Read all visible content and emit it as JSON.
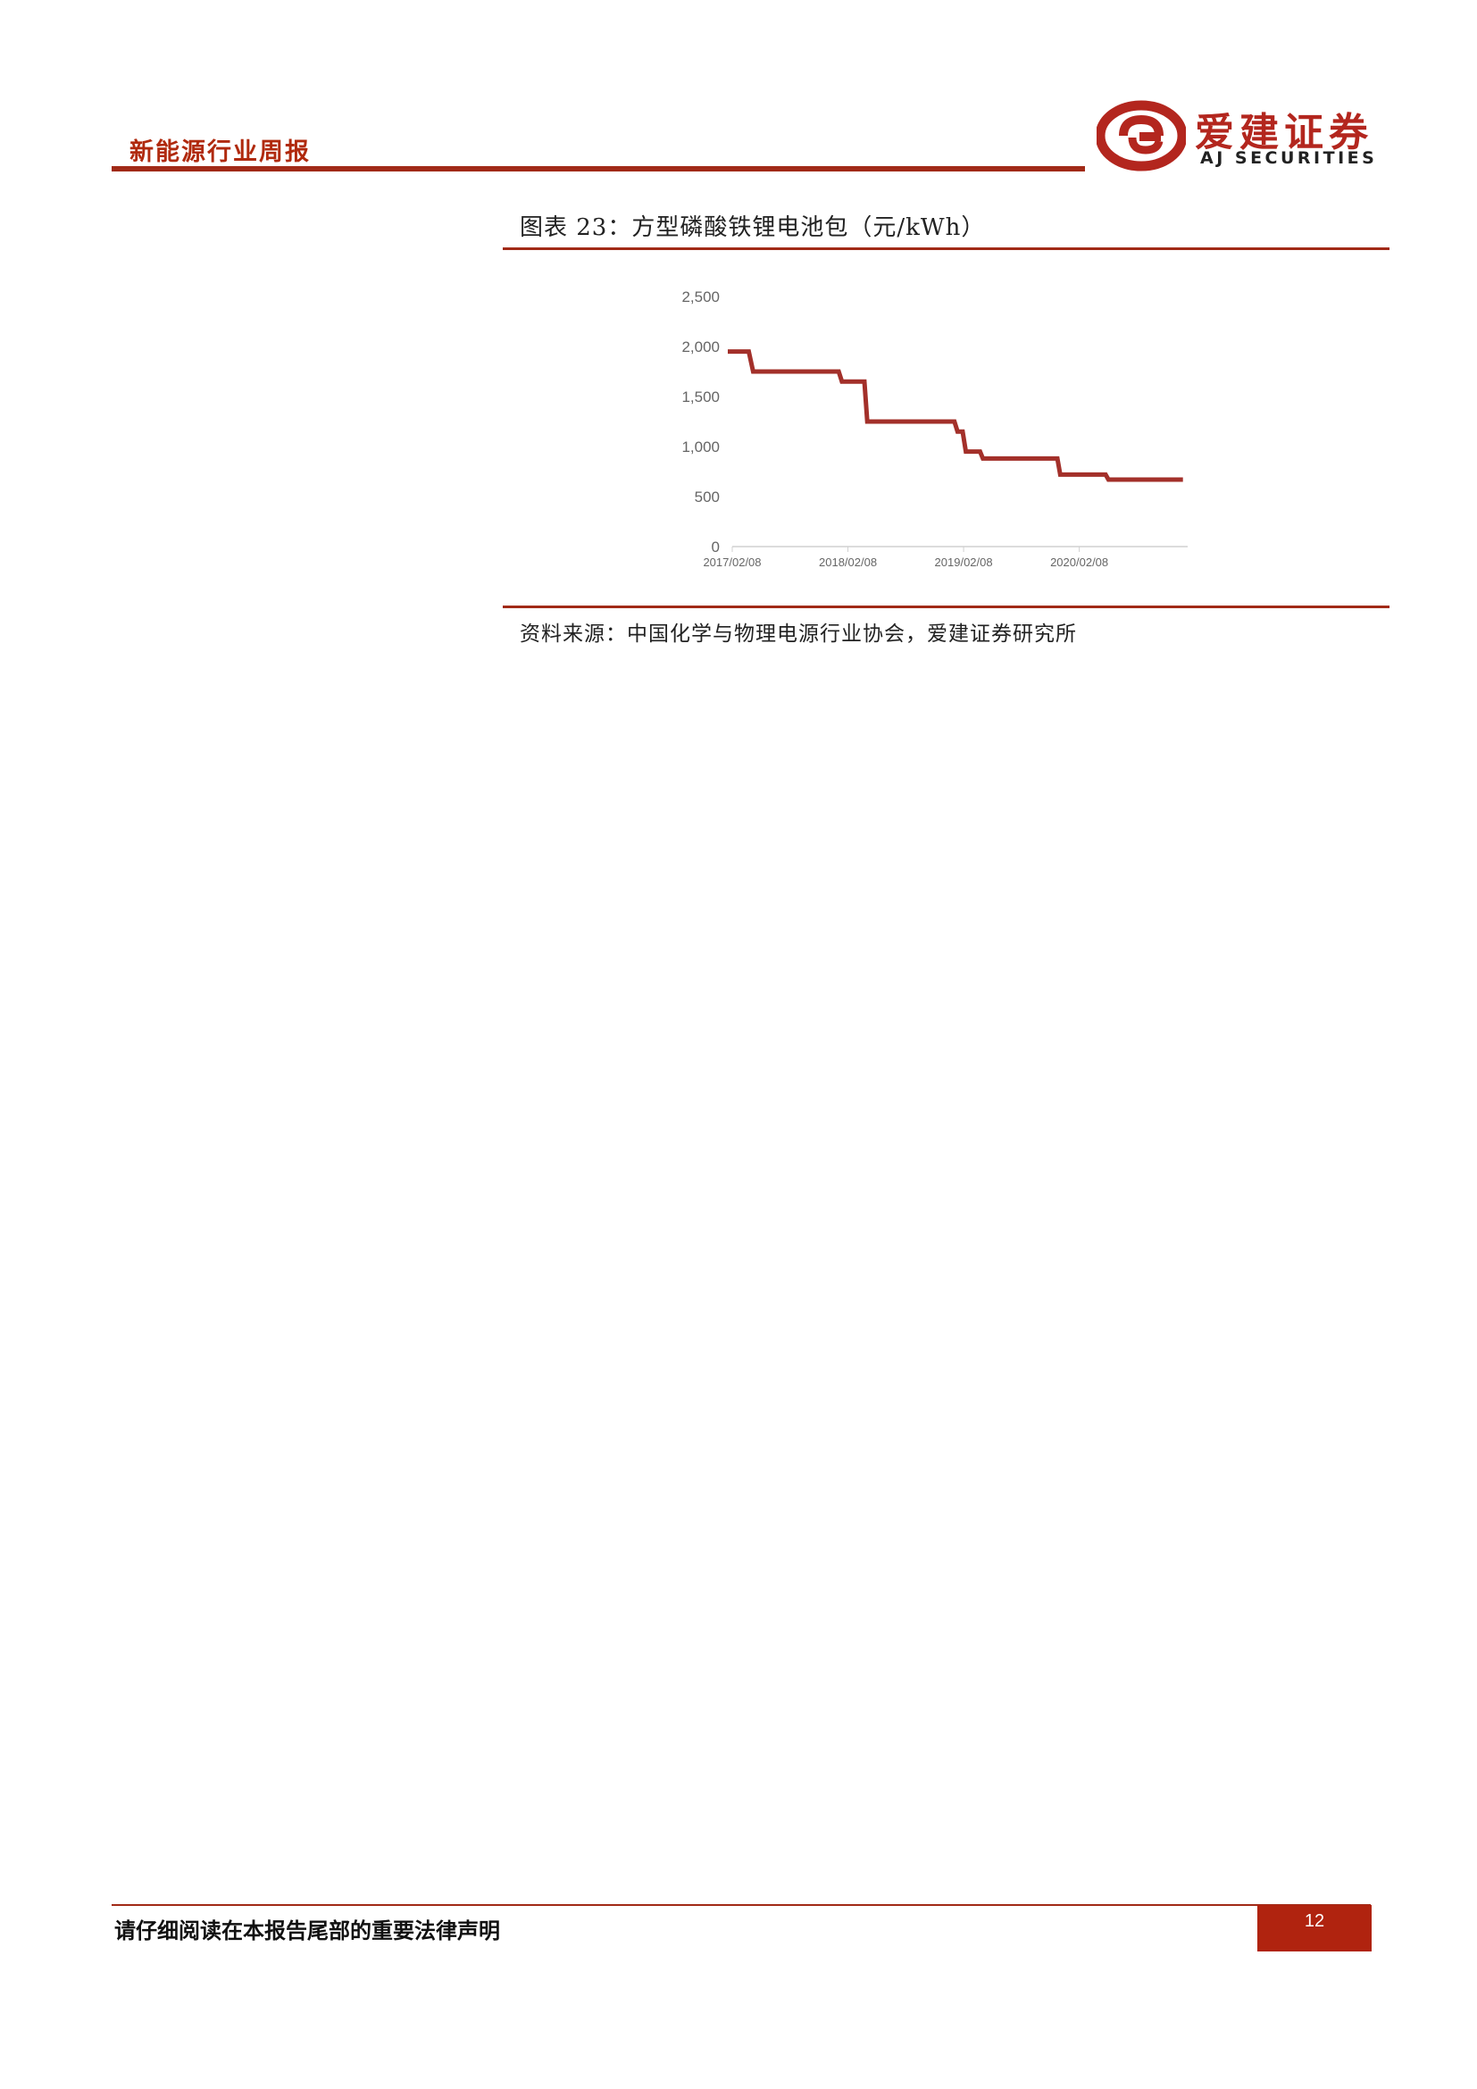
{
  "header": {
    "report_title": "新能源行业周报",
    "logo_cn": "爱建证券",
    "logo_en": "AJ SECURITIES"
  },
  "figure": {
    "title": "图表 23：方型磷酸铁锂电池包（元/kWh）",
    "source": "资料来源：中国化学与物理电源行业协会，爱建证券研究所"
  },
  "chart_data": {
    "type": "line",
    "step": true,
    "x_tick_labels": [
      "2017/02/08",
      "2018/02/08",
      "2019/02/08",
      "2020/02/08"
    ],
    "y_tick_labels": [
      "0",
      "500",
      "1,000",
      "1,500",
      "2,000",
      "2,500"
    ],
    "ylim": [
      0,
      2500
    ],
    "xlim": [
      "2017-02-08",
      "2021-01-15"
    ],
    "grid": false,
    "legend": "none",
    "line_color": "#a3302a",
    "series": [
      {
        "x": [
          "2017-01-25",
          "2017-04-01",
          "2017-04-15",
          "2018-01-10",
          "2018-01-20",
          "2018-04-01",
          "2018-04-10",
          "2019-01-10",
          "2019-01-20",
          "2019-02-05",
          "2019-02-15",
          "2019-04-01",
          "2019-04-10",
          "2019-12-01",
          "2019-12-10",
          "2020-05-01",
          "2020-05-10",
          "2020-12-31"
        ],
        "y": [
          1950,
          1950,
          1750,
          1750,
          1650,
          1650,
          1250,
          1250,
          1150,
          1150,
          950,
          950,
          880,
          880,
          720,
          720,
          670,
          670
        ]
      }
    ]
  },
  "footer": {
    "disclaimer": "请仔细阅读在本报告尾部的重要法律声明",
    "page_number": "12"
  }
}
